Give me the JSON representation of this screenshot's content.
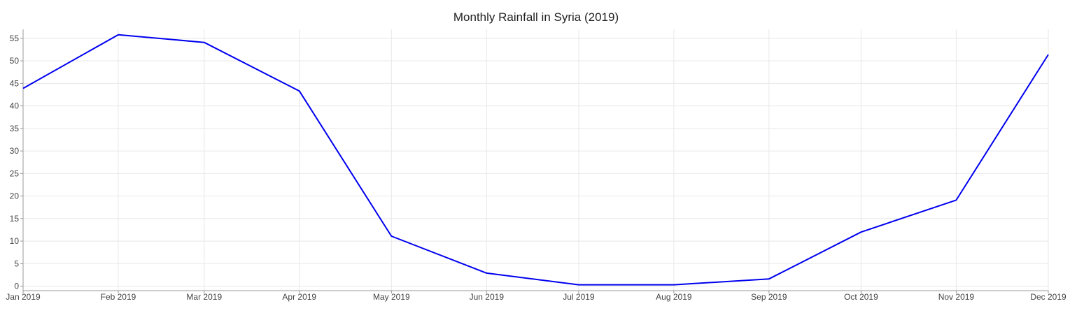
{
  "chart_data": {
    "type": "line",
    "title": "Monthly Rainfall in Syria (2019)",
    "xlabel": "",
    "ylabel": "",
    "x": [
      "Jan 2019",
      "Feb 2019",
      "Mar 2019",
      "Apr 2019",
      "May 2019",
      "Jun 2019",
      "Jul 2019",
      "Aug 2019",
      "Sep 2019",
      "Oct 2019",
      "Nov 2019",
      "Dec 2019"
    ],
    "x_dates": [
      "2019-01-01",
      "2019-02-01",
      "2019-03-01",
      "2019-04-01",
      "2019-05-01",
      "2019-06-01",
      "2019-07-01",
      "2019-08-01",
      "2019-09-01",
      "2019-10-01",
      "2019-11-01",
      "2019-12-01"
    ],
    "series": [
      {
        "color": "#0000ee",
        "values": [
          43.9,
          55.8,
          54.1,
          43.3,
          11.1,
          2.9,
          0.3,
          0.3,
          1.6,
          12.0,
          19.1,
          51.4
        ]
      }
    ],
    "ylim": [
      -1,
      57
    ],
    "yticks": [
      0,
      5,
      10,
      15,
      20,
      25,
      30,
      35,
      40,
      45,
      50,
      55
    ],
    "grid": true,
    "legend": "none"
  }
}
